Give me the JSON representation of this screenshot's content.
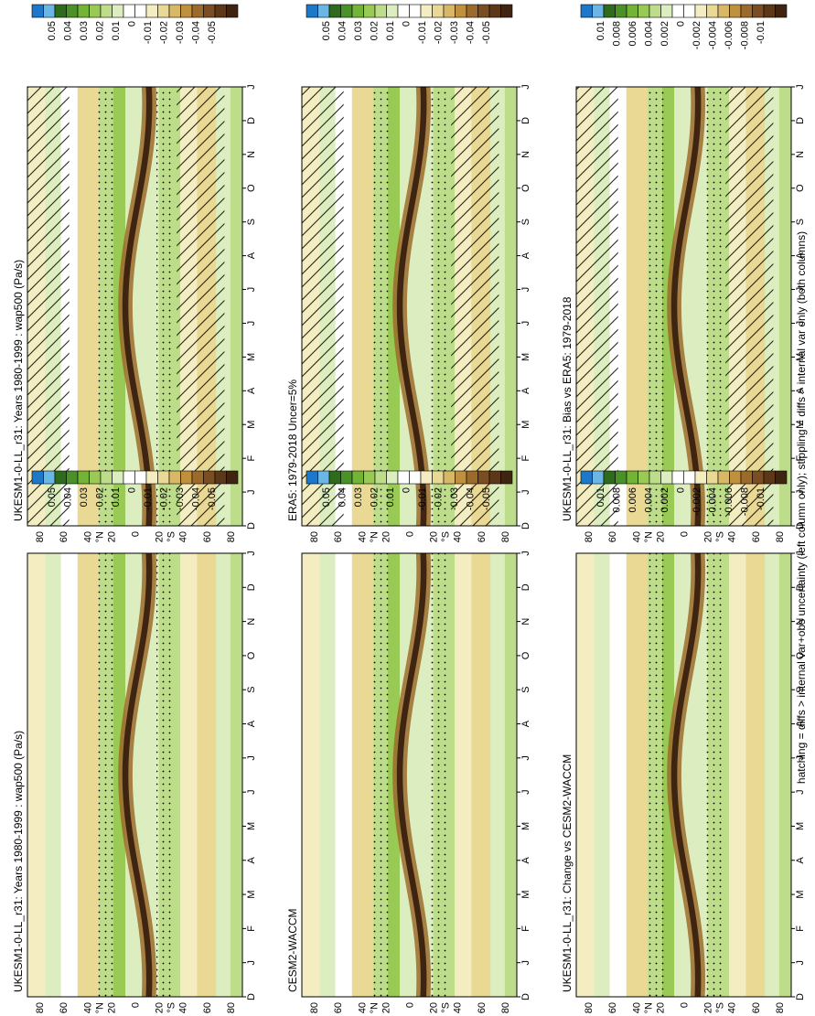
{
  "footnote": "hatching = diffs > internal var+obs uncertainty (left column only); stippling = diffs > internal var only (both columns)",
  "month_ticks": [
    "D",
    "J",
    "F",
    "M",
    "A",
    "M",
    "J",
    "J",
    "A",
    "S",
    "O",
    "N",
    "D",
    "J"
  ],
  "lat_ticks": [
    "80",
    "60",
    "40",
    "°N",
    "20",
    "0",
    "20",
    "°S",
    "40",
    "60",
    "80"
  ],
  "chart_data": [
    {
      "type": "heatmap",
      "title": "UKESM1-0-LL_r31: Years 1980-1999 : wap500 (Pa/s)",
      "x": "month",
      "y": "latitude",
      "ylim": [
        -90,
        90
      ],
      "colorbar": {
        "labels": [
          "0.05",
          "0.04",
          "0.03",
          "0.02",
          "0.01",
          "0",
          "-0.01",
          "-0.02",
          "-0.03",
          "-0.04",
          "-0.05"
        ],
        "colors": [
          "#1d78c9",
          "#6cb6e6",
          "#2f6b1d",
          "#4a9228",
          "#73b336",
          "#98ca55",
          "#bddd8a",
          "#dcedbf",
          "#ffffff",
          "#ffffff",
          "#f4edc2",
          "#ead994",
          "#d8b866",
          "#bf913f",
          "#9c6b2c",
          "#7a4e22",
          "#5c3718",
          "#3f2511"
        ]
      },
      "hatching": true,
      "stippling": true
    },
    {
      "type": "heatmap",
      "title": "UKESM1-0-LL_r31: Years 1980-1999 : wap500 (Pa/s)",
      "x": "month",
      "y": "latitude",
      "ylim": [
        -90,
        90
      ],
      "colorbar": {
        "labels": [
          "0.05",
          "0.04",
          "0.03",
          "0.02",
          "0.01",
          "0",
          "-0.01",
          "-0.02",
          "-0.03",
          "-0.04",
          "-0.05"
        ],
        "colors": [
          "#1d78c9",
          "#6cb6e6",
          "#2f6b1d",
          "#4a9228",
          "#73b336",
          "#98ca55",
          "#bddd8a",
          "#dcedbf",
          "#ffffff",
          "#ffffff",
          "#f4edc2",
          "#ead994",
          "#d8b866",
          "#bf913f",
          "#9c6b2c",
          "#7a4e22",
          "#5c3718",
          "#3f2511"
        ]
      },
      "hatching": false,
      "stippling": true
    },
    {
      "type": "heatmap",
      "title": "ERA5: 1979-2018 Uncer=5%",
      "x": "month",
      "y": "latitude",
      "ylim": [
        -90,
        90
      ],
      "colorbar": {
        "labels": [
          "0.05",
          "0.04",
          "0.03",
          "0.02",
          "0.01",
          "0",
          "-0.01",
          "-0.02",
          "-0.03",
          "-0.04",
          "-0.05"
        ],
        "colors": [
          "#1d78c9",
          "#6cb6e6",
          "#2f6b1d",
          "#4a9228",
          "#73b336",
          "#98ca55",
          "#bddd8a",
          "#dcedbf",
          "#ffffff",
          "#ffffff",
          "#f4edc2",
          "#ead994",
          "#d8b866",
          "#bf913f",
          "#9c6b2c",
          "#7a4e22",
          "#5c3718",
          "#3f2511"
        ]
      },
      "hatching": true,
      "stippling": true
    },
    {
      "type": "heatmap",
      "title": "CESM2-WACCM",
      "x": "month",
      "y": "latitude",
      "ylim": [
        -90,
        90
      ],
      "colorbar": {
        "labels": [
          "0.05",
          "0.04",
          "0.03",
          "0.02",
          "0.01",
          "0",
          "-0.01",
          "-0.02",
          "-0.03",
          "-0.04",
          "-0.05"
        ],
        "colors": [
          "#1d78c9",
          "#6cb6e6",
          "#2f6b1d",
          "#4a9228",
          "#73b336",
          "#98ca55",
          "#bddd8a",
          "#dcedbf",
          "#ffffff",
          "#ffffff",
          "#f4edc2",
          "#ead994",
          "#d8b866",
          "#bf913f",
          "#9c6b2c",
          "#7a4e22",
          "#5c3718",
          "#3f2511"
        ]
      },
      "hatching": false,
      "stippling": true
    },
    {
      "type": "heatmap",
      "title": "UKESM1-0-LL_r31: Bias vs ERA5: 1979-2018",
      "x": "month",
      "y": "latitude",
      "ylim": [
        -90,
        90
      ],
      "colorbar": {
        "labels": [
          "0.01",
          "0.008",
          "0.006",
          "0.004",
          "0.002",
          "0",
          "-0.002",
          "-0.004",
          "-0.006",
          "-0.008",
          "-0.01"
        ],
        "colors": [
          "#1d78c9",
          "#6cb6e6",
          "#2f6b1d",
          "#4a9228",
          "#73b336",
          "#98ca55",
          "#bddd8a",
          "#dcedbf",
          "#ffffff",
          "#ffffff",
          "#f4edc2",
          "#ead994",
          "#d8b866",
          "#bf913f",
          "#9c6b2c",
          "#7a4e22",
          "#5c3718",
          "#3f2511"
        ]
      },
      "hatching": true,
      "stippling": true
    },
    {
      "type": "heatmap",
      "title": "UKESM1-0-LL_r31: Change vs CESM2-WACCM",
      "x": "month",
      "y": "latitude",
      "ylim": [
        -90,
        90
      ],
      "colorbar": {
        "labels": [
          "0.01",
          "0.008",
          "0.006",
          "0.004",
          "0.002",
          "0",
          "-0.002",
          "-0.004",
          "-0.006",
          "-0.008",
          "-0.01"
        ],
        "colors": [
          "#1d78c9",
          "#6cb6e6",
          "#2f6b1d",
          "#4a9228",
          "#73b336",
          "#98ca55",
          "#bddd8a",
          "#dcedbf",
          "#ffffff",
          "#ffffff",
          "#f4edc2",
          "#ead994",
          "#d8b866",
          "#bf913f",
          "#9c6b2c",
          "#7a4e22",
          "#5c3718",
          "#3f2511"
        ]
      },
      "hatching": false,
      "stippling": true
    }
  ]
}
